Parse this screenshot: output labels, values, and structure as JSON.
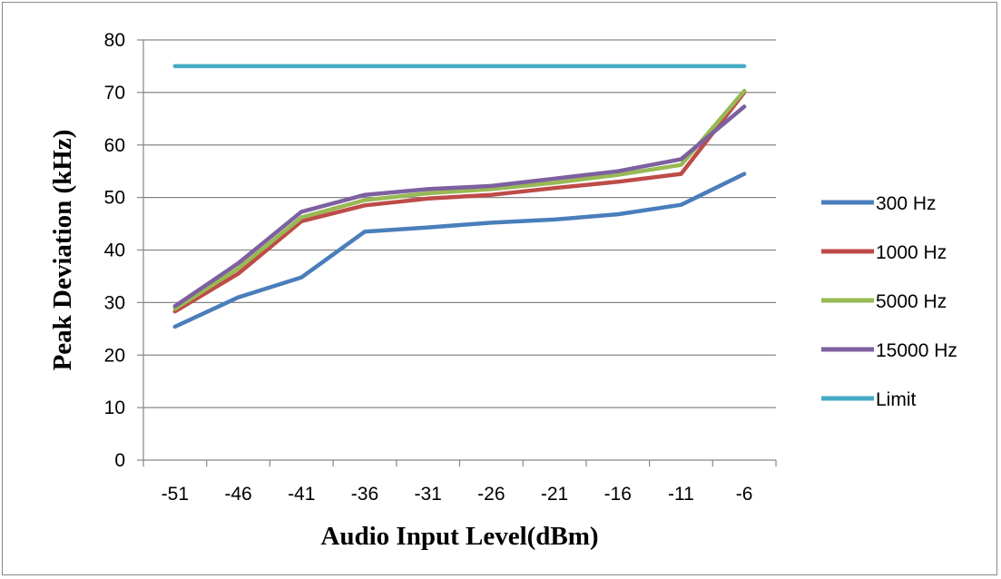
{
  "chart_data": {
    "type": "line",
    "title": "",
    "xlabel": "Audio Input Level(dBm)",
    "ylabel": "Peak Deviation (kHz)",
    "categories": [
      "-51",
      "-46",
      "-41",
      "-36",
      "-31",
      "-26",
      "-21",
      "-16",
      "-11",
      "-6"
    ],
    "ylim": [
      0,
      80
    ],
    "yticks": [
      0,
      10,
      20,
      30,
      40,
      50,
      60,
      70,
      80
    ],
    "grid": "horizontal",
    "legend_position": "right",
    "series": [
      {
        "name": "300 Hz",
        "color": "#4a7ebb",
        "values": [
          25.4,
          31,
          34.8,
          43.5,
          44.3,
          45.2,
          45.8,
          46.8,
          48.6,
          54.5
        ]
      },
      {
        "name": "1000 Hz",
        "color": "#be4b48",
        "values": [
          28.3,
          35.5,
          45.5,
          48.5,
          49.8,
          50.5,
          51.8,
          53,
          54.5,
          70
        ]
      },
      {
        "name": "5000 Hz",
        "color": "#98b954",
        "values": [
          28.8,
          36.5,
          46.2,
          49.5,
          50.8,
          51.6,
          52.8,
          54.3,
          56.2,
          70.3
        ]
      },
      {
        "name": "15000 Hz",
        "color": "#7d60a0",
        "values": [
          29.3,
          37.5,
          47.3,
          50.5,
          51.6,
          52.2,
          53.6,
          55,
          57.3,
          67.3
        ]
      },
      {
        "name": "Limit",
        "color": "#46aac5",
        "values": [
          75,
          75,
          75,
          75,
          75,
          75,
          75,
          75,
          75,
          75
        ]
      }
    ]
  }
}
